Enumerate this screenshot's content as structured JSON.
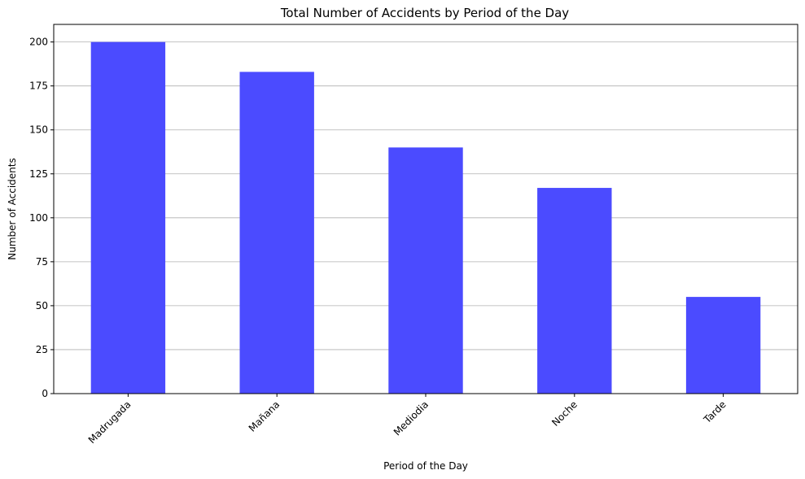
{
  "chart_data": {
    "type": "bar",
    "title": "Total Number of Accidents by Period of the Day",
    "xlabel": "Period of the Day",
    "ylabel": "Number of Accidents",
    "categories": [
      "Madrugada",
      "Mañana",
      "Mediodia",
      "Noche",
      "Tarde"
    ],
    "values": [
      200,
      183,
      140,
      117,
      55
    ],
    "ylim": [
      0,
      210
    ],
    "yticks": [
      0,
      25,
      50,
      75,
      100,
      125,
      150,
      175,
      200
    ],
    "grid": "y",
    "bar_color": "#4b4bff",
    "xtick_rotation": -45
  }
}
